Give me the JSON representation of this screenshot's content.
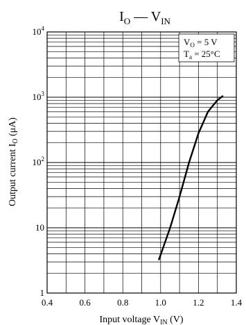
{
  "chart_data": {
    "type": "line",
    "title": {
      "main1": "I",
      "sub1": "O",
      "dash": " — ",
      "main2": "V",
      "sub2": "IN"
    },
    "xlabel": {
      "pre": "Input voltage  V",
      "sub": "IN",
      "post": "  (V)"
    },
    "ylabel": {
      "pre": "Output current  I",
      "sub": "O",
      "post": "  (μA)"
    },
    "xlim": [
      0.4,
      1.4
    ],
    "ylim": [
      1,
      10000
    ],
    "yscale": "log",
    "grid": true,
    "x_tick_labels": [
      "0.4",
      "0.6",
      "0.8",
      "1.0",
      "1.2",
      "1.4"
    ],
    "y_tick_labels": [
      {
        "base": "1",
        "exp": ""
      },
      {
        "base": "10",
        "exp": ""
      },
      {
        "base": "10",
        "exp": "2"
      },
      {
        "base": "10",
        "exp": "3"
      },
      {
        "base": "10",
        "exp": "4"
      }
    ],
    "annotation": {
      "line1": {
        "pre": "V",
        "sub": "O",
        "post": " = 5 V"
      },
      "line2": {
        "pre": "T",
        "sub": "a",
        "post": " = 25°C"
      },
      "placement": "top-right"
    },
    "series": [
      {
        "x": [
          0.99,
          1.05,
          1.1,
          1.15,
          1.2,
          1.25,
          1.3,
          1.33
        ],
        "values": [
          3.2,
          10,
          30,
          100,
          280,
          600,
          900,
          1050
        ]
      }
    ]
  }
}
